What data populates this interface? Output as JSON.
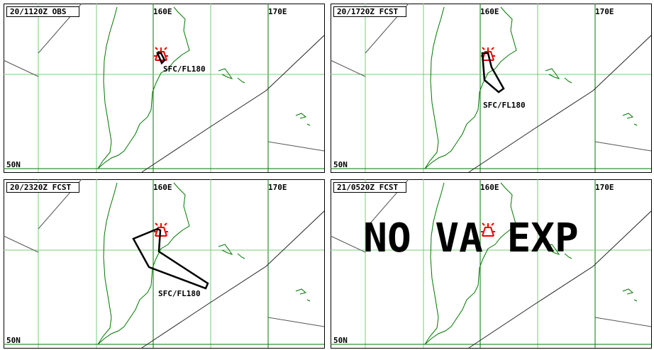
{
  "panels": [
    {
      "time": "20/1120Z OBS",
      "lon_labels": [
        "160E",
        "170E"
      ],
      "lat_label": "50N",
      "level": "SFC/FL180"
    },
    {
      "time": "20/1720Z FCST",
      "lon_labels": [
        "160E",
        "170E"
      ],
      "lat_label": "50N",
      "level": "SFC/FL180"
    },
    {
      "time": "20/2320Z FCST",
      "lon_labels": [
        "160E",
        "170E"
      ],
      "lat_label": "50N",
      "level": "SFC/FL180"
    },
    {
      "time": "21/0520Z FCST",
      "lon_labels": [
        "160E",
        "170E"
      ],
      "lat_label": "50N",
      "notice": "NO VA EXP"
    }
  ]
}
